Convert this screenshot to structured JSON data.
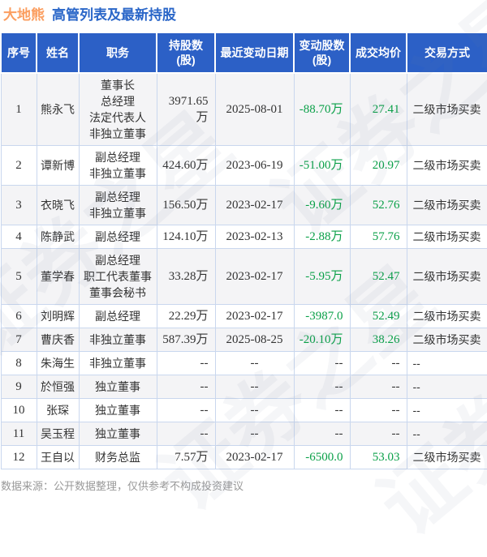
{
  "page": {
    "title_stock": "大地熊",
    "title_rest": "高管列表及最新持股",
    "footer": "数据来源：公开数据整理，仅供参考不构成投资建议",
    "watermark": "证券之星"
  },
  "colors": {
    "header_bg": "#2c60c6",
    "title_stock": "#fb9e60",
    "title_rest": "#2a66c8",
    "green": "#0aa048",
    "row_alt_bg": "#f4f4f6",
    "border": "#c9d7ee",
    "footer_text": "#999999"
  },
  "table": {
    "headers": [
      "序号",
      "姓名",
      "职务",
      "持股数\n(股)",
      "最近变动日期",
      "变动股数\n(股)",
      "成交均价",
      "交易方式"
    ],
    "rows": [
      {
        "seq": "1",
        "name": "熊永飞",
        "position": "董事长\n总经理\n法定代表人\n非独立董事",
        "shares": "3971.65万",
        "date": "2025-08-01",
        "change": "-88.70万",
        "price": "27.41",
        "method": "二级市场买卖"
      },
      {
        "seq": "2",
        "name": "谭新博",
        "position": "副总经理\n非独立董事",
        "shares": "424.60万",
        "date": "2023-06-19",
        "change": "-51.00万",
        "price": "20.97",
        "method": "二级市场买卖"
      },
      {
        "seq": "3",
        "name": "衣晓飞",
        "position": "副总经理\n非独立董事",
        "shares": "156.50万",
        "date": "2023-02-17",
        "change": "-9.60万",
        "price": "52.76",
        "method": "二级市场买卖"
      },
      {
        "seq": "4",
        "name": "陈静武",
        "position": "副总经理",
        "shares": "124.10万",
        "date": "2023-02-13",
        "change": "-2.88万",
        "price": "57.76",
        "method": "二级市场买卖"
      },
      {
        "seq": "5",
        "name": "董学春",
        "position": "副总经理\n职工代表董事\n董事会秘书",
        "shares": "33.28万",
        "date": "2023-02-17",
        "change": "-5.95万",
        "price": "52.47",
        "method": "二级市场买卖"
      },
      {
        "seq": "6",
        "name": "刘明辉",
        "position": "副总经理",
        "shares": "22.29万",
        "date": "2023-02-17",
        "change": "-3987.0",
        "price": "52.49",
        "method": "二级市场买卖"
      },
      {
        "seq": "7",
        "name": "曹庆香",
        "position": "非独立董事",
        "shares": "587.39万",
        "date": "2025-08-25",
        "change": "-20.10万",
        "price": "38.26",
        "method": "二级市场买卖"
      },
      {
        "seq": "8",
        "name": "朱海生",
        "position": "非独立董事",
        "shares": "--",
        "date": "--",
        "change": "--",
        "price": "--",
        "method": "--"
      },
      {
        "seq": "9",
        "name": "於恒强",
        "position": "独立董事",
        "shares": "--",
        "date": "--",
        "change": "--",
        "price": "--",
        "method": "--"
      },
      {
        "seq": "10",
        "name": "张琛",
        "position": "独立董事",
        "shares": "--",
        "date": "--",
        "change": "--",
        "price": "--",
        "method": "--"
      },
      {
        "seq": "11",
        "name": "吴玉程",
        "position": "独立董事",
        "shares": "--",
        "date": "--",
        "change": "--",
        "price": "--",
        "method": "--"
      },
      {
        "seq": "12",
        "name": "王自以",
        "position": "财务总监",
        "shares": "7.57万",
        "date": "2023-02-17",
        "change": "-6500.0",
        "price": "53.03",
        "method": "二级市场买卖"
      }
    ]
  }
}
